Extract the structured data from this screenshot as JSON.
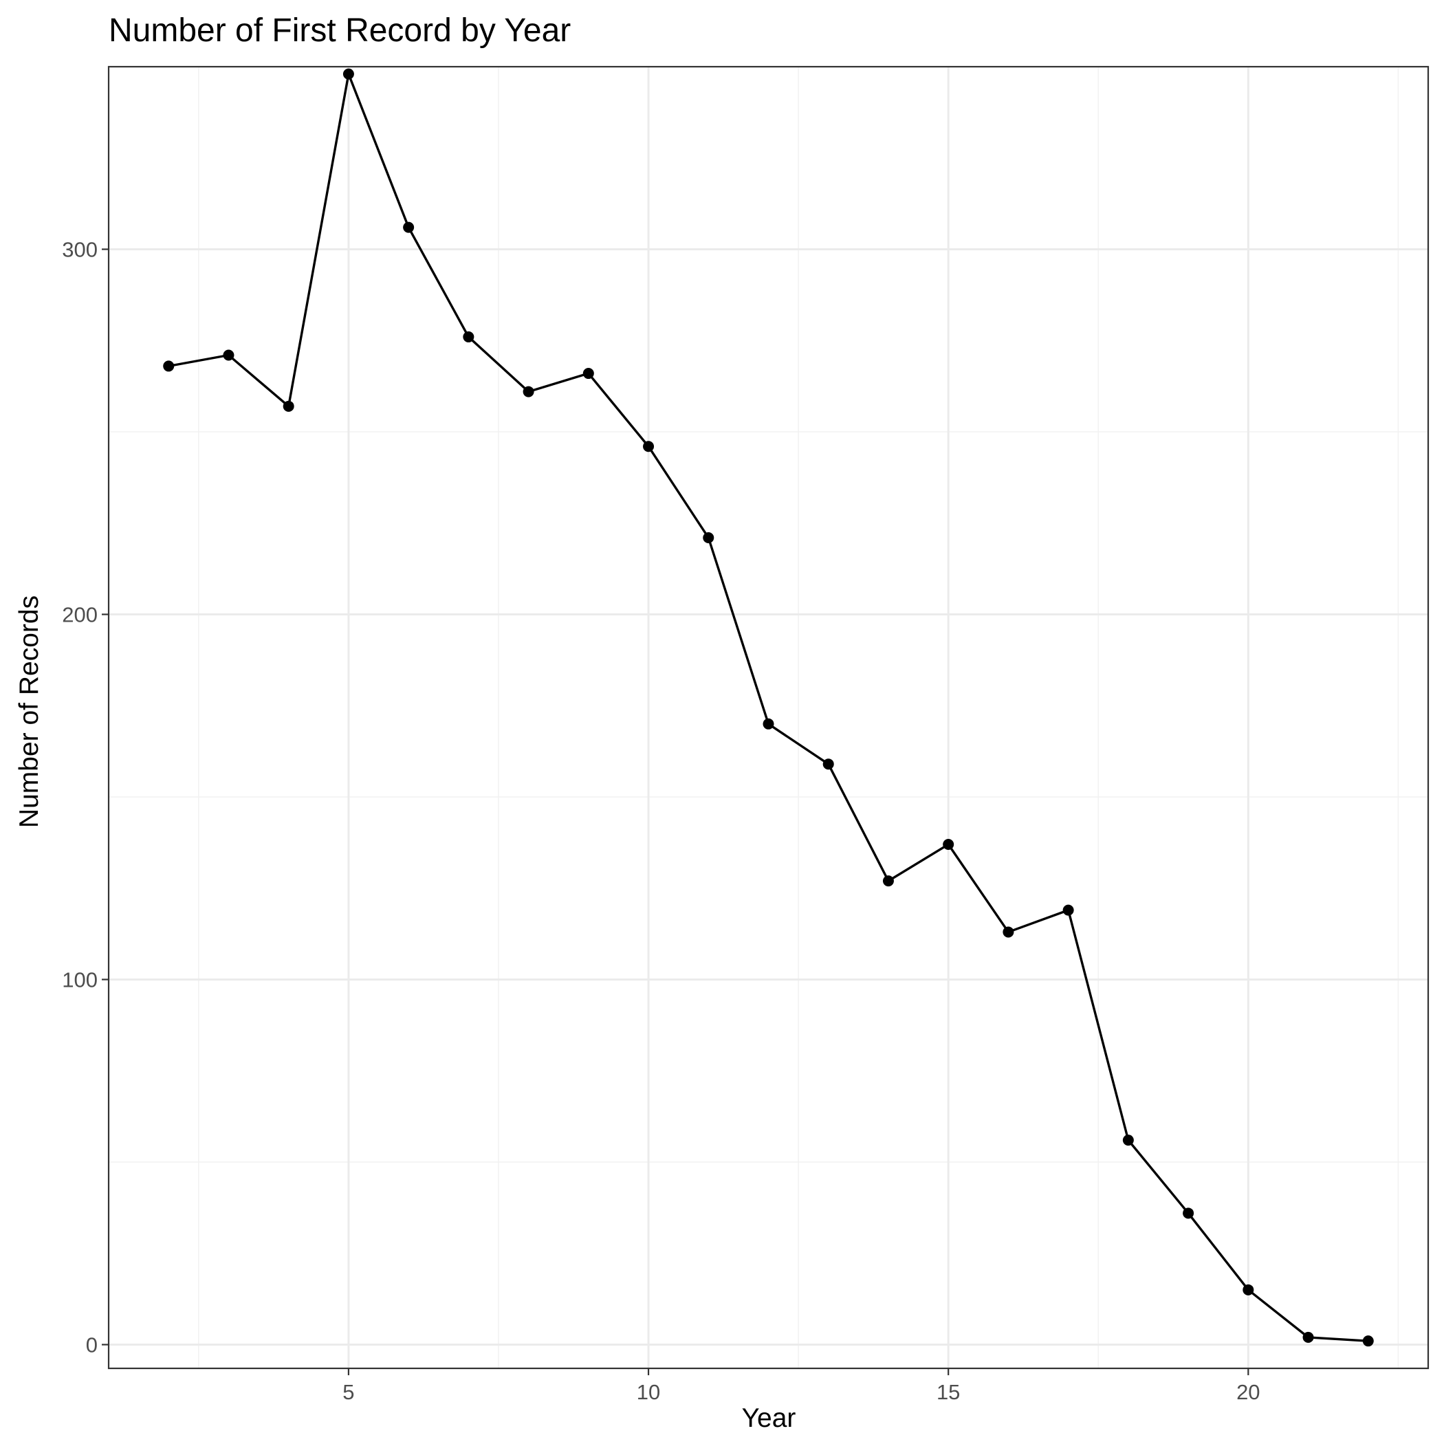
{
  "chart_data": {
    "type": "line",
    "title": "Number of First Record by Year",
    "xlabel": "Year",
    "ylabel": "Number of Records",
    "xlim": [
      1.0,
      23.0
    ],
    "ylim": [
      -6.5,
      350.0
    ],
    "x_major_ticks": [
      5,
      10,
      15,
      20
    ],
    "x_minor_ticks": [
      2.5,
      7.5,
      12.5,
      17.5,
      22.5
    ],
    "y_major_ticks": [
      0,
      100,
      200,
      300
    ],
    "y_minor_ticks": [
      50,
      150,
      250,
      350
    ],
    "grid": true,
    "legend": "none",
    "colors": {
      "line": "#000000",
      "point": "#000000",
      "major_grid": "#ebebeb",
      "minor_grid": "#f2f2f2",
      "panel_border": "#333333"
    },
    "series": [
      {
        "x": [
          2,
          3,
          4,
          5,
          6,
          7,
          8,
          9,
          10,
          11,
          12,
          13,
          14,
          15,
          16,
          17,
          18,
          19,
          20,
          21,
          22
        ],
        "y": [
          268,
          271,
          257,
          348,
          306,
          276,
          261,
          266,
          246,
          221,
          170,
          159,
          127,
          137,
          113,
          119,
          56,
          36,
          15,
          2,
          1
        ]
      }
    ]
  }
}
